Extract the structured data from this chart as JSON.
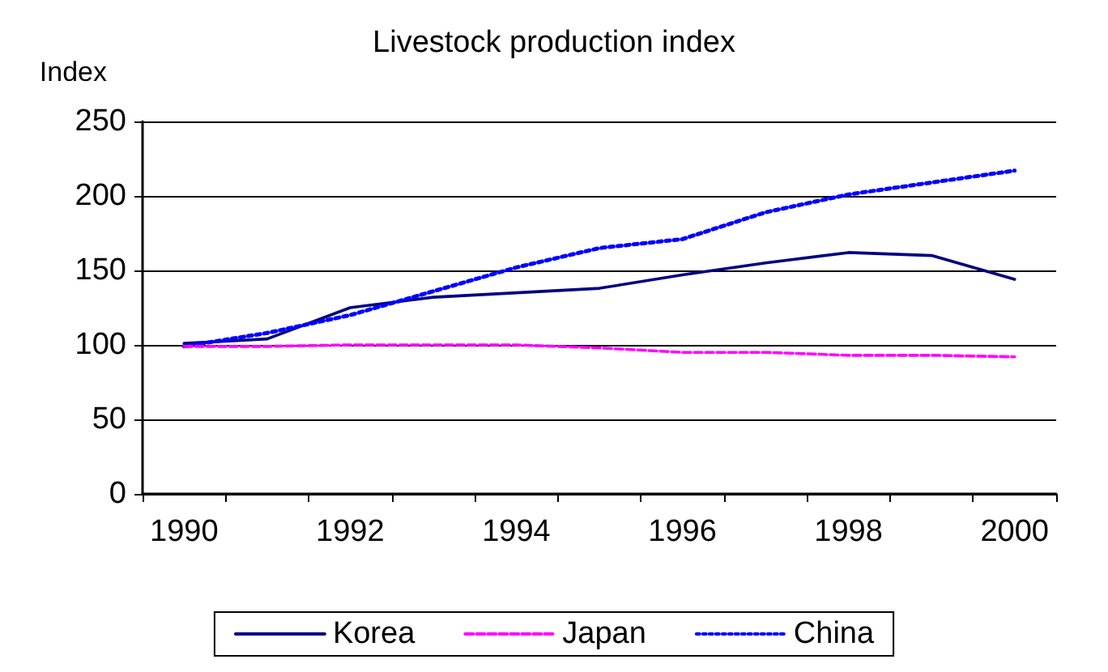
{
  "chart_data": {
    "type": "line",
    "title": "Livestock production index",
    "ylabel": "Index",
    "categories": [
      "1990",
      null,
      "1992",
      null,
      "1994",
      null,
      "1996",
      null,
      "1998",
      null,
      "2000"
    ],
    "series": [
      {
        "name": "Korea",
        "color": "#000080",
        "line_style": "solid",
        "values": [
          101,
          104,
          125,
          132,
          135,
          138,
          147,
          155,
          162,
          160,
          144
        ]
      },
      {
        "name": "Japan",
        "color": "#ff00ff",
        "line_style": "dashed",
        "values": [
          99,
          99,
          100,
          100,
          100,
          98,
          95,
          95,
          93,
          93,
          92
        ]
      },
      {
        "name": "China",
        "color": "#0000ff",
        "line_style": "dotted",
        "values": [
          99,
          108,
          120,
          136,
          152,
          165,
          171,
          189,
          201,
          209,
          217
        ]
      }
    ],
    "ylim": [
      0,
      250
    ],
    "yticks": [
      0,
      50,
      100,
      150,
      200,
      250
    ],
    "grid": "y",
    "legend": "bottom",
    "marker": "none"
  }
}
